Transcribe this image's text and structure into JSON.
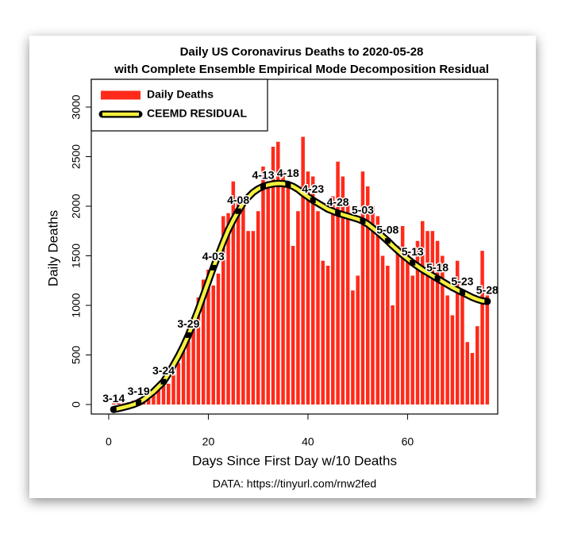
{
  "chart_data": {
    "type": "bar",
    "title": "Daily US Coronavirus Deaths to 2020-05-28",
    "subtitle": "with Complete Ensemble Empirical Mode Decomposition Residual",
    "x_label": "Days Since First Day w/10 Deaths",
    "y_label": "Daily Deaths",
    "caption": "DATA: https://tinyurl.com/rnw2fed",
    "x": [
      1,
      2,
      3,
      4,
      5,
      6,
      7,
      8,
      9,
      10,
      11,
      12,
      13,
      14,
      15,
      16,
      17,
      18,
      19,
      20,
      21,
      22,
      23,
      24,
      25,
      26,
      27,
      28,
      29,
      30,
      31,
      32,
      33,
      34,
      35,
      36,
      37,
      38,
      39,
      40,
      41,
      42,
      43,
      44,
      45,
      46,
      47,
      48,
      49,
      50,
      51,
      52,
      53,
      54,
      55,
      56,
      57,
      58,
      59,
      60,
      61,
      62,
      63,
      64,
      65,
      66,
      67,
      68,
      69,
      70,
      71,
      72,
      73,
      74,
      75,
      76
    ],
    "series": [
      {
        "name": "Daily Deaths",
        "type": "bar",
        "color": "#ff2a1a",
        "values": [
          10,
          12,
          18,
          23,
          40,
          58,
          50,
          110,
          120,
          150,
          240,
          210,
          420,
          420,
          560,
          640,
          860,
          1080,
          1260,
          1360,
          1200,
          1320,
          1900,
          1930,
          2250,
          2100,
          1990,
          1750,
          1750,
          1950,
          2400,
          2250,
          2600,
          2650,
          2350,
          2250,
          1600,
          1950,
          2700,
          2350,
          2300,
          1950,
          1450,
          1400,
          2100,
          2450,
          2300,
          2050,
          1150,
          1300,
          2350,
          2200,
          2000,
          1900,
          1500,
          1400,
          1000,
          1600,
          1800,
          1550,
          1300,
          1650,
          1850,
          1750,
          1750,
          1650,
          1500,
          1100,
          900,
          1450,
          1150,
          630,
          520,
          790,
          1550,
          1100
        ]
      },
      {
        "name": "CEEMD RESIDUAL",
        "type": "line",
        "color": "#f5f03c",
        "values": [
          -50,
          -40,
          -28,
          -15,
          0,
          20,
          50,
          90,
          130,
          180,
          230,
          310,
          400,
          490,
          590,
          700,
          830,
          960,
          1100,
          1240,
          1380,
          1510,
          1640,
          1760,
          1860,
          1950,
          2030,
          2090,
          2140,
          2175,
          2200,
          2215,
          2225,
          2230,
          2228,
          2220,
          2200,
          2170,
          2130,
          2095,
          2060,
          2030,
          2000,
          1970,
          1950,
          1930,
          1915,
          1900,
          1885,
          1870,
          1850,
          1820,
          1780,
          1740,
          1695,
          1650,
          1600,
          1555,
          1510,
          1470,
          1430,
          1395,
          1360,
          1330,
          1300,
          1270,
          1240,
          1210,
          1180,
          1155,
          1130,
          1105,
          1080,
          1060,
          1045,
          1040
        ]
      }
    ],
    "annotations": [
      {
        "x": 1,
        "label": "3-14"
      },
      {
        "x": 6,
        "label": "3-19"
      },
      {
        "x": 11,
        "label": "3-24"
      },
      {
        "x": 16,
        "label": "3-29"
      },
      {
        "x": 21,
        "label": "4-03"
      },
      {
        "x": 26,
        "label": "4-08"
      },
      {
        "x": 31,
        "label": "4-13"
      },
      {
        "x": 36,
        "label": "4-18"
      },
      {
        "x": 41,
        "label": "4-23"
      },
      {
        "x": 46,
        "label": "4-28"
      },
      {
        "x": 51,
        "label": "5-03"
      },
      {
        "x": 56,
        "label": "5-08"
      },
      {
        "x": 61,
        "label": "5-13"
      },
      {
        "x": 66,
        "label": "5-18"
      },
      {
        "x": 71,
        "label": "5-23"
      },
      {
        "x": 76,
        "label": "5-28"
      }
    ],
    "xlim": [
      -3.5,
      78.1
    ],
    "xticks": [
      0,
      20,
      40,
      60
    ],
    "ylim": [
      -96,
      3280
    ],
    "yticks": [
      0,
      500,
      1000,
      1500,
      2000,
      2500,
      3000
    ],
    "legend": "top-left"
  }
}
